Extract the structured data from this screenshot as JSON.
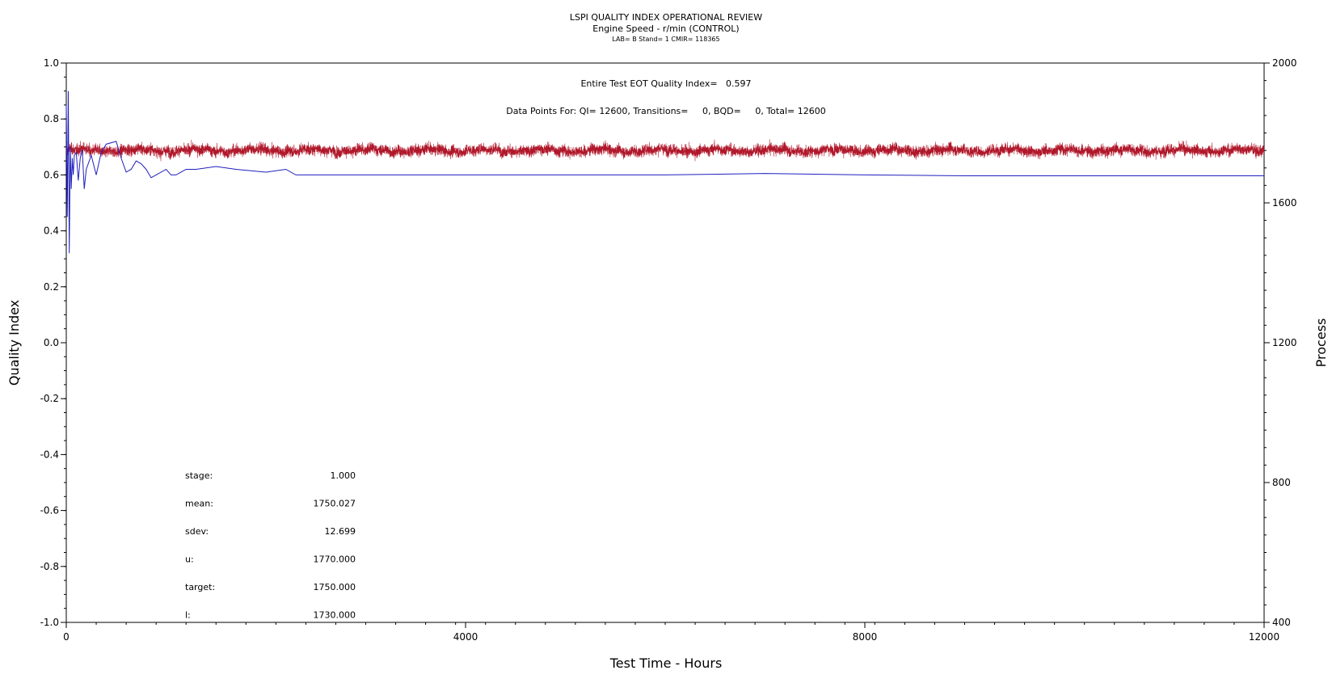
{
  "chart_data": {
    "type": "line",
    "title": "LSPI QUALITY INDEX OPERATIONAL REVIEW",
    "subtitle": "Engine Speed - r/min (CONTROL)",
    "subtitle2": "LAB= B Stand= 1 CMIR= 118365",
    "xlabel": "Test Time - Hours",
    "ylabel": "Quality Index",
    "y2label": "Process",
    "xlim": [
      0,
      12000
    ],
    "ylim": [
      -1.0,
      1.0
    ],
    "y2lim": [
      400,
      2000
    ],
    "x_ticks": [
      0,
      4000,
      8000,
      12000
    ],
    "x_tick_labels": [
      "0",
      "4000",
      "8000",
      "12000"
    ],
    "y_ticks": [
      1.0,
      0.8,
      0.6,
      0.4,
      0.2,
      0.0,
      -0.2,
      -0.4,
      -0.6,
      -0.8,
      -1.0
    ],
    "y_tick_labels": [
      "1.0",
      "0.8",
      "0.6",
      "0.4",
      "0.2",
      "0.0",
      "-0.2",
      "-0.4",
      "-0.6",
      "-0.8",
      "-1.0"
    ],
    "y2_ticks": [
      2000,
      1600,
      1200,
      800,
      400
    ],
    "y2_tick_labels": [
      "2000",
      "1600",
      "1200",
      "800",
      "400"
    ],
    "grid": false,
    "annotations": {
      "qi_text": "Entire Test EOT Quality Index=   0.597",
      "points_text": "Data Points For: QI= 12600, Transitions=     0, BQD=     0, Total= 12600"
    },
    "stats": [
      {
        "label": "stage:",
        "value": "1.000"
      },
      {
        "label": "mean:",
        "value": "1750.027"
      },
      {
        "label": "sdev:",
        "value": "12.699"
      },
      {
        "label": "u:",
        "value": "1770.000"
      },
      {
        "label": "target:",
        "value": "1750.000"
      },
      {
        "label": "l:",
        "value": "1730.000"
      }
    ],
    "series": [
      {
        "axis": "left",
        "color": "#1f1fbf",
        "x": [
          0,
          10,
          20,
          30,
          40,
          50,
          60,
          70,
          80,
          100,
          120,
          140,
          160,
          180,
          200,
          250,
          300,
          350,
          400,
          500,
          550,
          600,
          650,
          700,
          750,
          800,
          850,
          900,
          1000,
          1050,
          1100,
          1150,
          1200,
          1300,
          1500,
          1700,
          2000,
          2200,
          2300,
          2400,
          2600,
          3000,
          3500,
          4000,
          5000,
          6000,
          7000,
          8000,
          9000,
          10000,
          11000,
          12000
        ],
        "y": [
          0.85,
          0.45,
          0.9,
          0.32,
          0.7,
          0.55,
          0.66,
          0.6,
          0.67,
          0.68,
          0.58,
          0.66,
          0.69,
          0.55,
          0.62,
          0.67,
          0.6,
          0.68,
          0.71,
          0.72,
          0.66,
          0.61,
          0.62,
          0.65,
          0.64,
          0.62,
          0.59,
          0.6,
          0.62,
          0.6,
          0.6,
          0.61,
          0.62,
          0.62,
          0.63,
          0.62,
          0.61,
          0.62,
          0.6,
          0.6,
          0.6,
          0.6,
          0.6,
          0.6,
          0.6,
          0.6,
          0.605,
          0.6,
          0.597,
          0.597,
          0.597,
          0.597
        ]
      },
      {
        "axis": "right",
        "color": "#b0172a",
        "mean": 1750.027,
        "sdev": 12.699,
        "points": 12600
      }
    ]
  }
}
